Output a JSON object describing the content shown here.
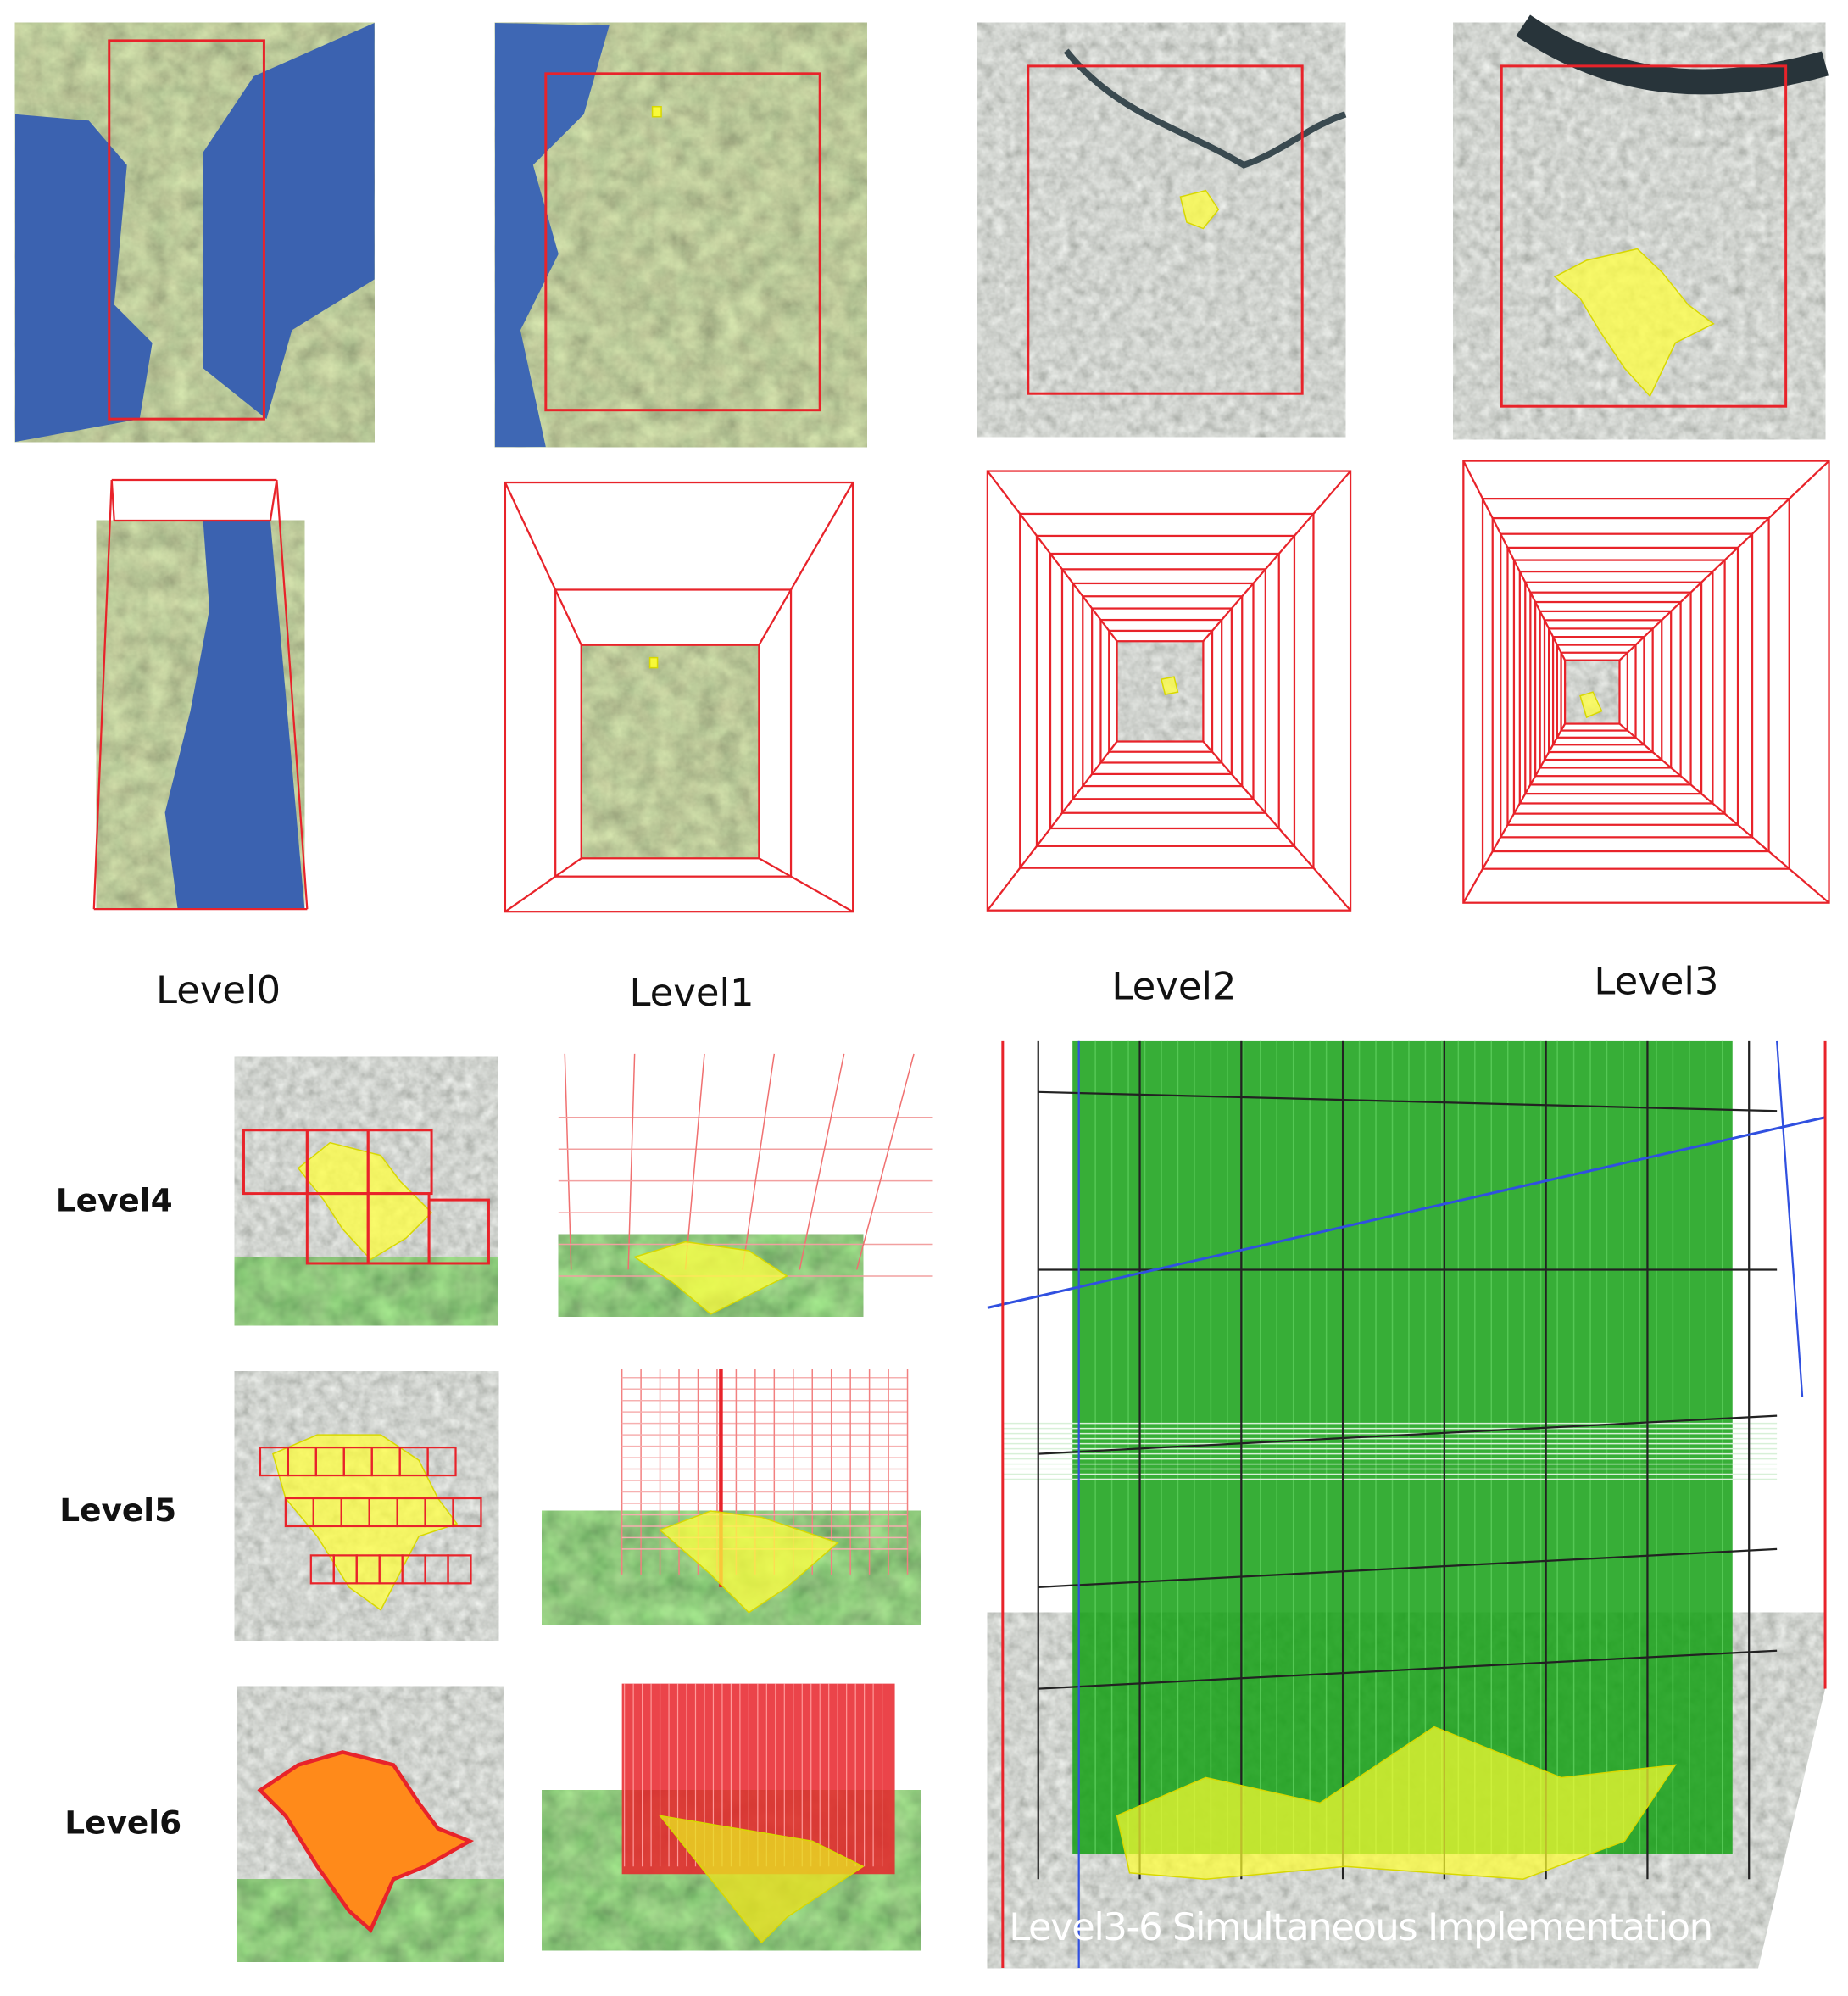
{
  "top_levels": [
    "Level0",
    "Level1",
    "Level2",
    "Level3"
  ],
  "bottom_levels": [
    "Level4",
    "Level5",
    "Level6"
  ],
  "caption": "Level3-6 Simultaneous Implementation"
}
